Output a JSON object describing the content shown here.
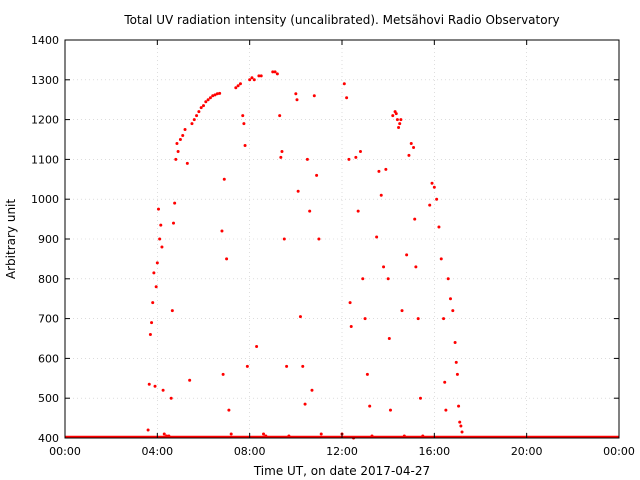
{
  "chart_data": {
    "type": "scatter",
    "title": "Total UV radiation intensity (uncalibrated). Metsähovi Radio Observatory",
    "xlabel": "Time UT, on date 2017-04-27",
    "ylabel": "Arbitrary unit",
    "xlim": [
      0,
      24
    ],
    "ylim": [
      400,
      1400
    ],
    "x_ticks": [
      {
        "value": 0,
        "label": "00:00"
      },
      {
        "value": 4,
        "label": "04:00"
      },
      {
        "value": 8,
        "label": "08:00"
      },
      {
        "value": 12,
        "label": "12:00"
      },
      {
        "value": 16,
        "label": "16:00"
      },
      {
        "value": 20,
        "label": "20:00"
      },
      {
        "value": 24,
        "label": "00:00"
      }
    ],
    "y_ticks": [
      400,
      500,
      600,
      700,
      800,
      900,
      1000,
      1100,
      1200,
      1300,
      1400
    ],
    "grid": true,
    "marker_color": "#ff0000",
    "series": [
      {
        "points": [
          [
            3.6,
            420
          ],
          [
            3.65,
            535
          ],
          [
            3.7,
            660
          ],
          [
            3.75,
            690
          ],
          [
            3.8,
            740
          ],
          [
            3.85,
            815
          ],
          [
            3.9,
            530
          ],
          [
            3.95,
            780
          ],
          [
            4.0,
            840
          ],
          [
            4.05,
            975
          ],
          [
            4.1,
            900
          ],
          [
            4.15,
            935
          ],
          [
            4.2,
            880
          ],
          [
            4.25,
            520
          ],
          [
            4.3,
            410
          ],
          [
            4.4,
            405
          ],
          [
            4.5,
            405
          ],
          [
            4.6,
            500
          ],
          [
            4.65,
            720
          ],
          [
            4.7,
            940
          ],
          [
            4.75,
            990
          ],
          [
            4.8,
            1100
          ],
          [
            4.85,
            1140
          ],
          [
            4.9,
            1120
          ],
          [
            5.0,
            1150
          ],
          [
            5.1,
            1160
          ],
          [
            5.2,
            1175
          ],
          [
            5.3,
            1090
          ],
          [
            5.4,
            545
          ],
          [
            5.5,
            1190
          ],
          [
            5.6,
            1200
          ],
          [
            5.7,
            1210
          ],
          [
            5.8,
            1220
          ],
          [
            5.9,
            1230
          ],
          [
            6.0,
            1235
          ],
          [
            6.1,
            1245
          ],
          [
            6.2,
            1250
          ],
          [
            6.3,
            1255
          ],
          [
            6.4,
            1260
          ],
          [
            6.5,
            1262
          ],
          [
            6.6,
            1265
          ],
          [
            6.7,
            1266
          ],
          [
            6.8,
            920
          ],
          [
            6.85,
            560
          ],
          [
            6.9,
            1050
          ],
          [
            7.0,
            850
          ],
          [
            7.1,
            470
          ],
          [
            7.2,
            410
          ],
          [
            7.4,
            1280
          ],
          [
            7.5,
            1285
          ],
          [
            7.6,
            1290
          ],
          [
            7.7,
            1210
          ],
          [
            7.75,
            1190
          ],
          [
            7.8,
            1135
          ],
          [
            7.9,
            580
          ],
          [
            8.0,
            1300
          ],
          [
            8.1,
            1305
          ],
          [
            8.2,
            1300
          ],
          [
            8.3,
            630
          ],
          [
            8.4,
            1310
          ],
          [
            8.5,
            1310
          ],
          [
            8.6,
            410
          ],
          [
            8.7,
            405
          ],
          [
            9.0,
            1320
          ],
          [
            9.1,
            1320
          ],
          [
            9.2,
            1315
          ],
          [
            9.3,
            1210
          ],
          [
            9.35,
            1105
          ],
          [
            9.4,
            1120
          ],
          [
            9.5,
            900
          ],
          [
            9.6,
            580
          ],
          [
            9.7,
            405
          ],
          [
            10.0,
            1265
          ],
          [
            10.05,
            1250
          ],
          [
            10.1,
            1020
          ],
          [
            10.2,
            705
          ],
          [
            10.3,
            580
          ],
          [
            10.4,
            485
          ],
          [
            10.5,
            1100
          ],
          [
            10.6,
            970
          ],
          [
            10.7,
            520
          ],
          [
            10.8,
            1260
          ],
          [
            10.9,
            1060
          ],
          [
            11.0,
            900
          ],
          [
            11.1,
            410
          ],
          [
            12.0,
            410
          ],
          [
            12.1,
            1290
          ],
          [
            12.2,
            1255
          ],
          [
            12.3,
            1100
          ],
          [
            12.35,
            740
          ],
          [
            12.4,
            680
          ],
          [
            12.5,
            400
          ],
          [
            12.6,
            1105
          ],
          [
            12.7,
            970
          ],
          [
            12.8,
            1120
          ],
          [
            12.9,
            800
          ],
          [
            13.0,
            700
          ],
          [
            13.1,
            560
          ],
          [
            13.2,
            480
          ],
          [
            13.3,
            405
          ],
          [
            13.5,
            905
          ],
          [
            13.6,
            1070
          ],
          [
            13.7,
            1010
          ],
          [
            13.8,
            830
          ],
          [
            13.9,
            1075
          ],
          [
            14.0,
            800
          ],
          [
            14.05,
            650
          ],
          [
            14.1,
            470
          ],
          [
            14.2,
            1210
          ],
          [
            14.3,
            1220
          ],
          [
            14.35,
            1215
          ],
          [
            14.4,
            1200
          ],
          [
            14.45,
            1180
          ],
          [
            14.5,
            1190
          ],
          [
            14.55,
            1200
          ],
          [
            14.6,
            720
          ],
          [
            14.7,
            405
          ],
          [
            14.8,
            860
          ],
          [
            14.9,
            1110
          ],
          [
            15.0,
            1140
          ],
          [
            15.1,
            1130
          ],
          [
            15.15,
            950
          ],
          [
            15.2,
            830
          ],
          [
            15.3,
            700
          ],
          [
            15.4,
            500
          ],
          [
            15.5,
            405
          ],
          [
            15.8,
            985
          ],
          [
            15.9,
            1040
          ],
          [
            16.0,
            1030
          ],
          [
            16.1,
            1000
          ],
          [
            16.2,
            930
          ],
          [
            16.3,
            850
          ],
          [
            16.4,
            700
          ],
          [
            16.45,
            540
          ],
          [
            16.5,
            470
          ],
          [
            16.6,
            800
          ],
          [
            16.7,
            750
          ],
          [
            16.8,
            720
          ],
          [
            16.9,
            640
          ],
          [
            16.95,
            590
          ],
          [
            17.0,
            560
          ],
          [
            17.05,
            480
          ],
          [
            17.1,
            440
          ],
          [
            17.15,
            430
          ],
          [
            17.2,
            415
          ]
        ]
      }
    ]
  }
}
